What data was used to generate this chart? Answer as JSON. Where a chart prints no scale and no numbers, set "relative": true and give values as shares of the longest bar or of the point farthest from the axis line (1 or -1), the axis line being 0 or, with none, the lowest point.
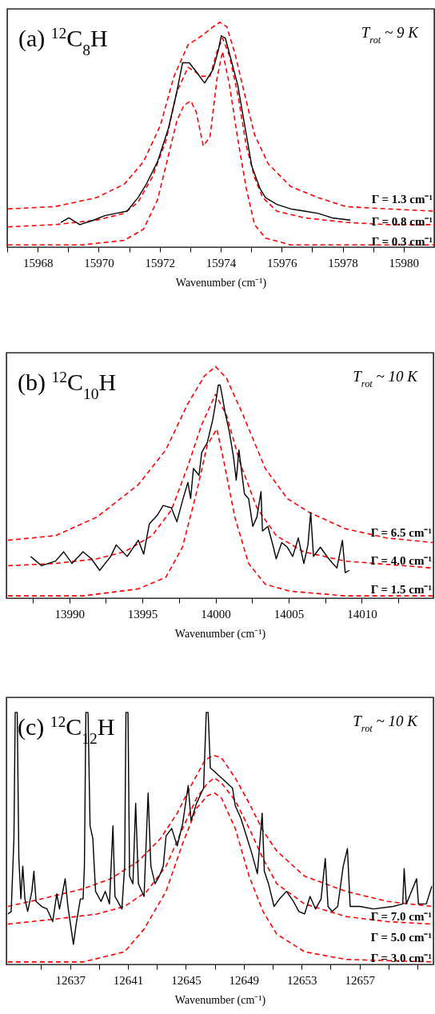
{
  "chart_data": [
    {
      "type": "line",
      "relative": true,
      "xlabel": "Wavenumber (cm⁻¹)",
      "xlim": [
        15967,
        15981
      ],
      "xticks": [
        {
          "value": 15967,
          "label": null
        },
        15968,
        {
          "value": 15969,
          "label": null
        },
        15970,
        {
          "value": 15971,
          "label": null
        },
        15972,
        {
          "value": 15973,
          "label": null
        },
        15974,
        {
          "value": 15975,
          "label": null
        },
        15976,
        {
          "value": 15977,
          "label": null
        },
        15978,
        {
          "value": 15979,
          "label": null
        },
        15980
      ],
      "annotations": [
        "(a) $^{12}$C$_{8}$H",
        "T$_{rot}$ ~ 9 K",
        "Γ = 1.3 cm⁻¹",
        "Γ = 0.8 cm⁻¹",
        "Γ = 0.3 cm⁻¹"
      ],
      "series": [
        {
          "color": "#ff0000",
          "line_style": "dashed",
          "x": [
            15967.02,
            15968.56,
            15969.93,
            15970.84,
            15971.47,
            15972.02,
            15972.47,
            15972.93,
            15973.38,
            15973.75,
            15973.97,
            15974.2,
            15974.47,
            15974.75,
            15975.11,
            15975.56,
            15976.29,
            15977.2,
            15978.11,
            15979.47,
            15981.0
          ],
          "values": [
            0.17,
            0.18,
            0.22,
            0.28,
            0.38,
            0.54,
            0.76,
            0.9,
            0.94,
            0.98,
            1.0,
            0.98,
            0.86,
            0.7,
            0.5,
            0.37,
            0.27,
            0.22,
            0.18,
            0.17,
            0.16
          ]
        },
        {
          "color": "#ff0000",
          "line_style": "dashed",
          "x": [
            15967.02,
            15968.56,
            15969.93,
            15970.84,
            15971.29,
            15971.75,
            15972.2,
            15972.56,
            15972.93,
            15973.38,
            15973.65,
            15973.88,
            15974.06,
            15974.29,
            15974.56,
            15974.84,
            15975.11,
            15975.38,
            15975.84,
            15976.75,
            15978.11,
            15979.47,
            15981.0
          ],
          "values": [
            0.09,
            0.1,
            0.12,
            0.15,
            0.2,
            0.31,
            0.47,
            0.69,
            0.8,
            0.76,
            0.76,
            0.87,
            0.93,
            0.85,
            0.68,
            0.45,
            0.31,
            0.22,
            0.16,
            0.13,
            0.11,
            0.1,
            0.1
          ]
        },
        {
          "color": "#ff0000",
          "line_style": "dashed",
          "x": [
            15967.02,
            15969.47,
            15970.84,
            15971.47,
            15971.93,
            15972.29,
            15972.56,
            15972.79,
            15973.02,
            15973.2,
            15973.43,
            15973.65,
            15973.88,
            15974.06,
            15974.29,
            15974.56,
            15974.84,
            15975.11,
            15975.47,
            15976.29,
            15978.11,
            15981.0
          ],
          "values": [
            0.01,
            0.01,
            0.03,
            0.08,
            0.21,
            0.41,
            0.56,
            0.63,
            0.65,
            0.6,
            0.45,
            0.49,
            0.75,
            0.87,
            0.72,
            0.48,
            0.26,
            0.1,
            0.04,
            0.01,
            0.01,
            0.01
          ]
        },
        {
          "color": "#000000",
          "line_style": "solid",
          "x": [
            15968.76,
            15969.02,
            15969.38,
            15969.84,
            15970.2,
            15970.56,
            15970.93,
            15971.29,
            15971.56,
            15971.93,
            15972.29,
            15972.56,
            15972.75,
            15972.97,
            15973.2,
            15973.47,
            15973.75,
            15973.93,
            15974.02,
            15974.15,
            15974.29,
            15974.56,
            15974.84,
            15975.02,
            15975.29,
            15975.47,
            15975.84,
            15976.29,
            15976.75,
            15977.2,
            15977.65,
            15978.25
          ],
          "values": [
            0.11,
            0.13,
            0.1,
            0.12,
            0.14,
            0.15,
            0.16,
            0.22,
            0.28,
            0.38,
            0.53,
            0.69,
            0.82,
            0.82,
            0.78,
            0.73,
            0.79,
            0.88,
            0.94,
            0.93,
            0.86,
            0.72,
            0.5,
            0.36,
            0.26,
            0.22,
            0.19,
            0.17,
            0.16,
            0.15,
            0.13,
            0.12
          ]
        }
      ]
    },
    {
      "type": "line",
      "relative": true,
      "xlabel": "Wavenumber (cm⁻¹)",
      "xlim": [
        13985.7,
        14014.9
      ],
      "xticks": [
        {
          "value": 13987.5,
          "label": null
        },
        13990,
        {
          "value": 13992.5,
          "label": null
        },
        13995,
        {
          "value": 13997.5,
          "label": null
        },
        14000,
        {
          "value": 14002.5,
          "label": null
        },
        14005,
        {
          "value": 14007.5,
          "label": null
        },
        14010,
        {
          "value": 14012.5,
          "label": null
        }
      ],
      "annotations": [
        "(b) $^{12}$C$_{10}$H",
        "T$_{rot}$ ~ 10 K",
        "Γ = 6.5 cm⁻¹",
        "Γ = 4.0 cm⁻¹",
        "Γ = 1.5 cm⁻¹"
      ],
      "series": [
        {
          "color": "#ff0000",
          "line_style": "dashed",
          "x": [
            13985.81,
            13989.06,
            13991.89,
            13994.72,
            13996.6,
            13998.11,
            13999.25,
            14000.0,
            14000.75,
            14001.89,
            14003.4,
            14004.91,
            14006.42,
            14008.87,
            14011.7,
            14014.87
          ],
          "values": [
            0.25,
            0.27,
            0.35,
            0.49,
            0.64,
            0.84,
            0.96,
            1.0,
            0.95,
            0.79,
            0.56,
            0.43,
            0.37,
            0.3,
            0.26,
            0.24
          ]
        },
        {
          "color": "#ff0000",
          "line_style": "dashed",
          "x": [
            13985.81,
            13989.06,
            13991.89,
            13993.77,
            13995.66,
            13996.98,
            13998.11,
            13999.06,
            14000.0,
            14000.75,
            14001.7,
            14002.83,
            14004.15,
            14006.04,
            14008.87,
            14014.87
          ],
          "values": [
            0.14,
            0.15,
            0.17,
            0.2,
            0.27,
            0.38,
            0.57,
            0.75,
            0.88,
            0.79,
            0.58,
            0.39,
            0.27,
            0.2,
            0.16,
            0.13
          ]
        },
        {
          "color": "#ff0000",
          "line_style": "dashed",
          "x": [
            13985.81,
            13990.94,
            13994.72,
            13996.6,
            13997.74,
            13998.68,
            13999.43,
            14000.09,
            14000.57,
            14001.32,
            14002.26,
            14003.4,
            14005.09,
            14008.87,
            14014.87
          ],
          "values": [
            0.01,
            0.01,
            0.04,
            0.09,
            0.22,
            0.45,
            0.66,
            0.73,
            0.59,
            0.35,
            0.15,
            0.06,
            0.03,
            0.01,
            0.01
          ]
        },
        {
          "color": "#000000",
          "line_style": "solid",
          "x": [
            13987.36,
            13988.11,
            13989.06,
            13989.62,
            13990.19,
            13990.94,
            13991.51,
            13992.08,
            13992.83,
            13993.21,
            13993.96,
            13994.72,
            13995.09,
            13995.47,
            13996.04,
            13996.42,
            13996.98,
            13997.36,
            13997.74,
            13998.11,
            13998.3,
            13998.49,
            13998.87,
            13999.06,
            13999.43,
            13999.81,
            14000.0,
            14000.19,
            14000.32,
            14000.47,
            14000.66,
            14000.94,
            14001.23,
            14001.42,
            14001.6,
            14001.98,
            14002.26,
            14002.55,
            14002.83,
            14003.11,
            14003.21,
            14003.58,
            14003.96,
            14004.15,
            14004.53,
            14004.91,
            14005.28,
            14005.66,
            14006.04,
            14006.32,
            14006.51,
            14006.7,
            14007.17,
            14007.74,
            14008.3,
            14008.68,
            14008.87,
            14009.15
          ],
          "values": [
            0.18,
            0.14,
            0.16,
            0.2,
            0.15,
            0.2,
            0.17,
            0.12,
            0.18,
            0.23,
            0.18,
            0.25,
            0.19,
            0.32,
            0.36,
            0.4,
            0.39,
            0.33,
            0.42,
            0.5,
            0.43,
            0.56,
            0.53,
            0.63,
            0.67,
            0.77,
            0.84,
            0.92,
            0.92,
            0.87,
            0.8,
            0.72,
            0.61,
            0.51,
            0.64,
            0.45,
            0.43,
            0.31,
            0.35,
            0.46,
            0.29,
            0.31,
            0.22,
            0.17,
            0.24,
            0.22,
            0.18,
            0.26,
            0.15,
            0.23,
            0.37,
            0.18,
            0.22,
            0.17,
            0.13,
            0.25,
            0.11,
            0.12
          ]
        }
      ]
    },
    {
      "type": "line",
      "relative": true,
      "xlabel": "Wavenumber (cm⁻¹)",
      "xlim": [
        12632.6,
        12662.1
      ],
      "xticks": [
        {
          "value": 12635,
          "label": null
        },
        12637,
        {
          "value": 12639,
          "label": null
        },
        12641,
        {
          "value": 12643,
          "label": null
        },
        12645,
        {
          "value": 12647,
          "label": null
        },
        12649,
        {
          "value": 12651,
          "label": null
        },
        12653,
        {
          "value": 12655,
          "label": null
        },
        12657,
        {
          "value": 12659,
          "label": null
        },
        {
          "value": 12661,
          "label": null
        }
      ],
      "annotations": [
        "(c) $^{12}$C$_{12}$H",
        "T$_{rot}$ ~ 10 K",
        "Γ = 7.0 cm⁻¹",
        "Γ = 5.0 cm⁻¹",
        "Γ = 3.0 cm⁻¹"
      ],
      "series": [
        {
          "color": "#ff0000",
          "line_style": "dashed",
          "x": [
            12632.7,
            12635.03,
            12637.9,
            12639.81,
            12641.72,
            12643.25,
            12644.4,
            12645.36,
            12646.31,
            12646.89,
            12647.46,
            12648.41,
            12649.37,
            12650.33,
            12651.28,
            12653.2,
            12656.06,
            12658.93,
            12661.99
          ],
          "values": [
            0.23,
            0.26,
            0.3,
            0.34,
            0.41,
            0.5,
            0.6,
            0.71,
            0.81,
            0.83,
            0.82,
            0.74,
            0.64,
            0.53,
            0.45,
            0.35,
            0.29,
            0.25,
            0.23
          ]
        },
        {
          "color": "#ff0000",
          "line_style": "dashed",
          "x": [
            12632.7,
            12635.99,
            12638.85,
            12640.77,
            12642.3,
            12643.63,
            12644.78,
            12645.74,
            12646.5,
            12646.98,
            12647.46,
            12648.41,
            12649.37,
            12650.33,
            12651.28,
            12653.2,
            12656.06,
            12658.93,
            12661.99
          ],
          "values": [
            0.16,
            0.18,
            0.2,
            0.23,
            0.29,
            0.39,
            0.54,
            0.66,
            0.72,
            0.74,
            0.72,
            0.65,
            0.54,
            0.42,
            0.32,
            0.24,
            0.19,
            0.17,
            0.16
          ]
        },
        {
          "color": "#ff0000",
          "line_style": "dashed",
          "x": [
            12632.7,
            12637.9,
            12640.77,
            12642.11,
            12643.63,
            12644.78,
            12645.74,
            12646.5,
            12646.98,
            12647.46,
            12648.41,
            12649.37,
            12650.33,
            12651.28,
            12653.2,
            12656.06,
            12661.99
          ],
          "values": [
            0.01,
            0.01,
            0.05,
            0.14,
            0.29,
            0.48,
            0.62,
            0.67,
            0.68,
            0.66,
            0.54,
            0.35,
            0.21,
            0.12,
            0.05,
            0.02,
            0.01
          ]
        },
        {
          "color": "#000000",
          "line_style": "solid",
          "x": [
            12632.7,
            12632.93,
            12633.12,
            12633.21,
            12633.35,
            12633.46,
            12633.6,
            12633.73,
            12633.88,
            12634.07,
            12634.36,
            12634.5,
            12634.65,
            12635.03,
            12635.41,
            12635.8,
            12636.08,
            12636.27,
            12636.66,
            12636.85,
            12637.23,
            12637.42,
            12637.71,
            12637.9,
            12637.99,
            12638.09,
            12638.24,
            12638.38,
            12638.57,
            12638.76,
            12639.14,
            12639.43,
            12639.72,
            12639.96,
            12640.1,
            12640.58,
            12640.77,
            12640.86,
            12641.0,
            12641.11,
            12641.34,
            12641.53,
            12641.72,
            12642.11,
            12642.39,
            12642.58,
            12642.87,
            12643.16,
            12643.44,
            12643.63,
            12644.02,
            12644.4,
            12644.78,
            12645.16,
            12645.36,
            12645.74,
            12646.22,
            12646.41,
            12646.54,
            12646.69,
            12647.08,
            12647.65,
            12648.22,
            12648.41,
            12648.8,
            12649.18,
            12649.56,
            12649.94,
            12650.27,
            12650.42,
            12650.71,
            12651.09,
            12651.47,
            12651.95,
            12652.43,
            12652.81,
            12653.2,
            12653.58,
            12653.96,
            12654.34,
            12654.63,
            12654.82,
            12655.11,
            12655.49,
            12655.87,
            12656.16,
            12656.35,
            12657.02,
            12657.97,
            12659.31,
            12659.98,
            12660.08,
            12660.23,
            12660.94,
            12661.07,
            12661.61,
            12661.99
          ],
          "values": [
            0.2,
            0.21,
            0.5,
            1.0,
            1.0,
            0.42,
            0.26,
            0.39,
            0.26,
            0.21,
            0.29,
            0.37,
            0.25,
            0.23,
            0.22,
            0.17,
            0.28,
            0.22,
            0.34,
            0.23,
            0.08,
            0.16,
            0.26,
            0.26,
            0.39,
            1.0,
            1.0,
            0.55,
            0.5,
            0.29,
            0.25,
            0.29,
            0.24,
            0.55,
            0.27,
            0.22,
            0.39,
            1.0,
            1.0,
            0.35,
            0.32,
            0.64,
            0.32,
            0.27,
            0.68,
            0.39,
            0.32,
            0.35,
            0.39,
            0.51,
            0.54,
            0.47,
            0.56,
            0.71,
            0.57,
            0.64,
            0.7,
            1.0,
            1.0,
            0.78,
            0.76,
            0.73,
            0.7,
            0.63,
            0.58,
            0.51,
            0.44,
            0.36,
            0.6,
            0.37,
            0.32,
            0.23,
            0.26,
            0.29,
            0.25,
            0.21,
            0.2,
            0.27,
            0.22,
            0.26,
            0.42,
            0.23,
            0.21,
            0.23,
            0.39,
            0.46,
            0.23,
            0.23,
            0.22,
            0.23,
            0.24,
            0.38,
            0.24,
            0.34,
            0.24,
            0.24,
            0.31
          ]
        }
      ]
    }
  ]
}
